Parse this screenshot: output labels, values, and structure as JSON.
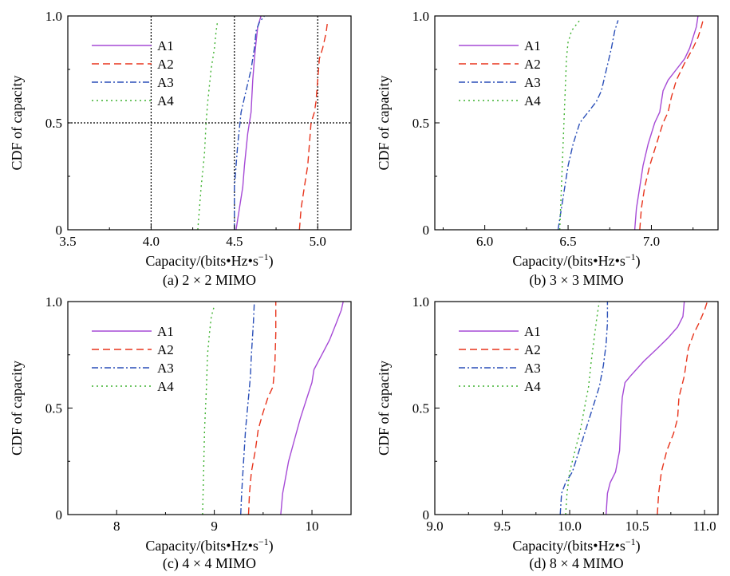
{
  "figure": {
    "ylabel": "CDF of capacity",
    "xlabel_main": "Capacity/(bits•Hz•s",
    "xlabel_sup": "−1",
    "xlabel_end": ")"
  },
  "legend": [
    "A1",
    "A2",
    "A3",
    "A4"
  ],
  "colors": {
    "A1": "#a64ad6",
    "A2": "#e8341c",
    "A3": "#2a4fb8",
    "A4": "#3fb230"
  },
  "chart_data": [
    {
      "type": "line",
      "caption": "(a) 2 × 2 MIMO",
      "xlabel": "Capacity/(bits•Hz•s⁻¹)",
      "ylabel": "CDF of capacity",
      "xlim": [
        3.5,
        5.2
      ],
      "ylim": [
        0,
        1
      ],
      "xticks": [
        3.5,
        4.0,
        4.5,
        5.0
      ],
      "xtick_labels": [
        "3.5",
        "4.0",
        "4.5",
        "5.0"
      ],
      "yticks": [
        0,
        0.5,
        1.0
      ],
      "ytick_labels": [
        "0",
        "0.5",
        "1.0"
      ],
      "reference_lines": {
        "x": [
          4.0,
          4.5,
          5.0
        ],
        "y": [
          0.5
        ]
      },
      "legend_position": "top-left",
      "series": [
        {
          "name": "A1",
          "x": [
            4.51,
            4.53,
            4.55,
            4.56,
            4.58,
            4.6,
            4.61,
            4.62,
            4.63,
            4.64,
            4.66
          ],
          "y": [
            0,
            0.1,
            0.2,
            0.3,
            0.45,
            0.55,
            0.7,
            0.8,
            0.88,
            0.95,
            1.0
          ]
        },
        {
          "name": "A2",
          "x": [
            4.89,
            4.9,
            4.92,
            4.94,
            4.95,
            4.96,
            4.98,
            4.99,
            5.0,
            5.01,
            5.03,
            5.05,
            5.06
          ],
          "y": [
            0,
            0.1,
            0.2,
            0.3,
            0.4,
            0.5,
            0.55,
            0.6,
            0.7,
            0.8,
            0.85,
            0.92,
            0.98
          ]
        },
        {
          "name": "A3",
          "x": [
            4.5,
            4.5,
            4.51,
            4.52,
            4.54,
            4.57,
            4.6,
            4.62,
            4.63,
            4.65,
            4.68
          ],
          "y": [
            0,
            0.2,
            0.3,
            0.4,
            0.55,
            0.65,
            0.75,
            0.85,
            0.93,
            0.97,
            1.0
          ]
        },
        {
          "name": "A4",
          "x": [
            4.28,
            4.3,
            4.32,
            4.33,
            4.34,
            4.36,
            4.38,
            4.39,
            4.4
          ],
          "y": [
            0,
            0.2,
            0.35,
            0.5,
            0.6,
            0.75,
            0.85,
            0.93,
            0.98
          ]
        }
      ]
    },
    {
      "type": "line",
      "caption": "(b) 3 × 3 MIMO",
      "xlabel": "Capacity/(bits•Hz•s⁻¹)",
      "ylabel": "CDF of capacity",
      "xlim": [
        5.7,
        7.4
      ],
      "ylim": [
        0,
        1
      ],
      "xticks": [
        6.0,
        6.5,
        7.0
      ],
      "xtick_labels": [
        "6.0",
        "6.5",
        "7.0"
      ],
      "yticks": [
        0,
        0.5,
        1.0
      ],
      "ytick_labels": [
        "0",
        "0.5",
        "1.0"
      ],
      "legend_position": "top-left",
      "series": [
        {
          "name": "A1",
          "x": [
            6.9,
            6.91,
            6.93,
            6.95,
            6.98,
            7.02,
            7.05,
            7.07,
            7.1,
            7.15,
            7.2,
            7.23,
            7.25,
            7.27,
            7.28
          ],
          "y": [
            0,
            0.1,
            0.2,
            0.3,
            0.4,
            0.5,
            0.55,
            0.65,
            0.7,
            0.75,
            0.8,
            0.85,
            0.9,
            0.95,
            1.0
          ]
        },
        {
          "name": "A2",
          "x": [
            6.93,
            6.94,
            6.96,
            6.99,
            7.03,
            7.07,
            7.1,
            7.12,
            7.15,
            7.2,
            7.25,
            7.28,
            7.3,
            7.31
          ],
          "y": [
            0,
            0.1,
            0.2,
            0.3,
            0.4,
            0.5,
            0.55,
            0.62,
            0.7,
            0.78,
            0.85,
            0.9,
            0.95,
            0.98
          ]
        },
        {
          "name": "A3",
          "x": [
            6.44,
            6.46,
            6.48,
            6.5,
            6.53,
            6.57,
            6.62,
            6.67,
            6.7,
            6.73,
            6.76,
            6.78,
            6.8
          ],
          "y": [
            0,
            0.1,
            0.2,
            0.3,
            0.4,
            0.5,
            0.55,
            0.6,
            0.65,
            0.75,
            0.85,
            0.93,
            0.98
          ]
        },
        {
          "name": "A4",
          "x": [
            6.45,
            6.46,
            6.47,
            6.48,
            6.49,
            6.5,
            6.51,
            6.52,
            6.55,
            6.57
          ],
          "y": [
            0,
            0.2,
            0.4,
            0.6,
            0.8,
            0.88,
            0.9,
            0.93,
            0.96,
            0.98
          ]
        }
      ]
    },
    {
      "type": "line",
      "caption": "(c) 4 × 4 MIMO",
      "xlabel": "Capacity/(bits•Hz•s⁻¹)",
      "ylabel": "CDF of capacity",
      "xlim": [
        7.5,
        10.4
      ],
      "ylim": [
        0,
        1
      ],
      "xticks": [
        8,
        9,
        10
      ],
      "xtick_labels": [
        "8",
        "9",
        "10"
      ],
      "yticks": [
        0,
        0.5,
        1.0
      ],
      "ytick_labels": [
        "0",
        "0.5",
        "1.0"
      ],
      "legend_position": "top-left",
      "series": [
        {
          "name": "A1",
          "x": [
            9.68,
            9.7,
            9.72,
            9.76,
            9.82,
            9.88,
            9.95,
            10.0,
            10.02,
            10.1,
            10.18,
            10.25,
            10.3,
            10.32
          ],
          "y": [
            0,
            0.1,
            0.15,
            0.25,
            0.35,
            0.45,
            0.55,
            0.62,
            0.68,
            0.75,
            0.82,
            0.9,
            0.96,
            1.0
          ]
        },
        {
          "name": "A2",
          "x": [
            9.35,
            9.36,
            9.38,
            9.42,
            9.45,
            9.5,
            9.55,
            9.6,
            9.62,
            9.63,
            9.63
          ],
          "y": [
            0,
            0.1,
            0.2,
            0.3,
            0.4,
            0.48,
            0.55,
            0.6,
            0.7,
            0.85,
            1.0
          ]
        },
        {
          "name": "A3",
          "x": [
            9.27,
            9.28,
            9.3,
            9.32,
            9.35,
            9.37,
            9.38,
            9.4,
            9.41
          ],
          "y": [
            0,
            0.1,
            0.25,
            0.4,
            0.55,
            0.65,
            0.75,
            0.9,
            1.0
          ]
        },
        {
          "name": "A4",
          "x": [
            8.88,
            8.89,
            8.9,
            8.92,
            8.93,
            8.95,
            8.97,
            9.0
          ],
          "y": [
            0,
            0.2,
            0.4,
            0.6,
            0.75,
            0.85,
            0.93,
            0.98
          ]
        }
      ]
    },
    {
      "type": "line",
      "caption": "(d) 8 × 4 MIMO",
      "xlabel": "Capacity/(bits•Hz•s⁻¹)",
      "ylabel": "CDF of capacity",
      "xlim": [
        9.0,
        11.1
      ],
      "ylim": [
        0,
        1
      ],
      "xticks": [
        9.0,
        9.5,
        10.0,
        10.5,
        11.0
      ],
      "xtick_labels": [
        "9.0",
        "9.5",
        "10.0",
        "10.5",
        "11.0"
      ],
      "yticks": [
        0,
        0.5,
        1.0
      ],
      "ytick_labels": [
        "0",
        "0.5",
        "1.0"
      ],
      "legend_position": "top-left",
      "series": [
        {
          "name": "A1",
          "x": [
            10.27,
            10.28,
            10.3,
            10.34,
            10.37,
            10.38,
            10.39,
            10.41,
            10.45,
            10.55,
            10.65,
            10.73,
            10.8,
            10.84,
            10.85
          ],
          "y": [
            0,
            0.1,
            0.15,
            0.2,
            0.3,
            0.45,
            0.55,
            0.62,
            0.65,
            0.72,
            0.78,
            0.83,
            0.88,
            0.93,
            1.0
          ]
        },
        {
          "name": "A2",
          "x": [
            10.65,
            10.66,
            10.68,
            10.72,
            10.77,
            10.8,
            10.81,
            10.85,
            10.88,
            10.92,
            10.96,
            11.0,
            11.02
          ],
          "y": [
            0,
            0.1,
            0.2,
            0.3,
            0.38,
            0.45,
            0.55,
            0.65,
            0.78,
            0.85,
            0.9,
            0.96,
            1.0
          ]
        },
        {
          "name": "A3",
          "x": [
            9.93,
            9.94,
            9.97,
            10.02,
            10.07,
            10.12,
            10.17,
            10.22,
            10.25,
            10.27,
            10.28,
            10.28
          ],
          "y": [
            0,
            0.1,
            0.15,
            0.2,
            0.3,
            0.4,
            0.5,
            0.6,
            0.7,
            0.8,
            0.9,
            1.0
          ]
        },
        {
          "name": "A4",
          "x": [
            9.97,
            9.98,
            10.0,
            10.04,
            10.08,
            10.11,
            10.14,
            10.16,
            10.18,
            10.2,
            10.22
          ],
          "y": [
            0,
            0.1,
            0.2,
            0.3,
            0.4,
            0.5,
            0.6,
            0.72,
            0.82,
            0.92,
            1.0
          ]
        }
      ]
    }
  ]
}
